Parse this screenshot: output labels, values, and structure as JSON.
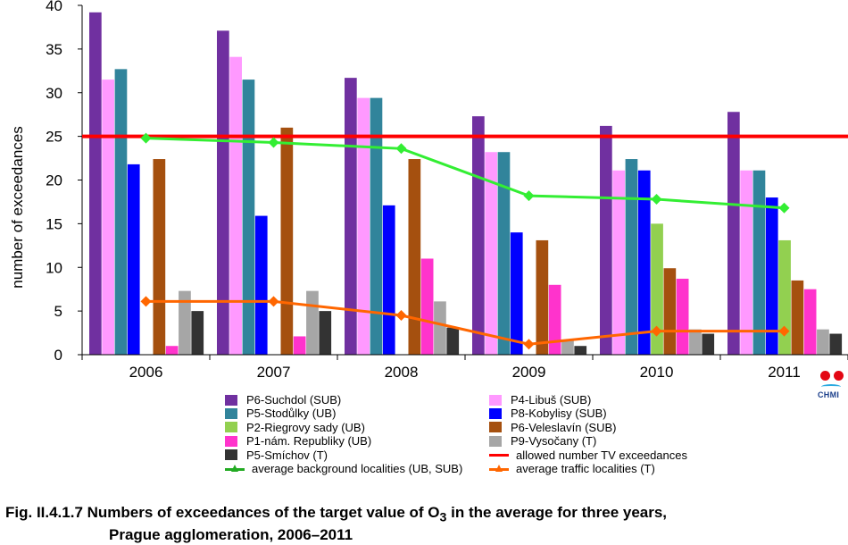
{
  "chart_data": {
    "type": "bar",
    "title": "",
    "xlabel": "",
    "ylabel": "number of exceedances",
    "ylim": [
      0,
      40
    ],
    "yticks": [
      0,
      5,
      10,
      15,
      20,
      25,
      30,
      35,
      40
    ],
    "grid": false,
    "legend_position": "bottom",
    "categories": [
      "2006",
      "2007",
      "2008",
      "2009",
      "2010",
      "2011"
    ],
    "series": [
      {
        "name": "P6-Suchdol (SUB)",
        "color": "#7030a0",
        "values": [
          39.2,
          37.1,
          31.7,
          27.3,
          26.2,
          27.8
        ]
      },
      {
        "name": "P4-Libuš (SUB)",
        "color": "#ff99ff",
        "values": [
          31.5,
          34.1,
          29.4,
          23.2,
          21.1,
          21.1
        ]
      },
      {
        "name": "P5-Stodůlky (UB)",
        "color": "#31849b",
        "values": [
          32.7,
          31.5,
          29.4,
          23.2,
          22.4,
          21.1
        ]
      },
      {
        "name": "P8-Kobylisy (SUB)",
        "color": "#0000ff",
        "values": [
          21.8,
          15.9,
          17.1,
          14.0,
          21.1,
          18.0
        ]
      },
      {
        "name": "P2-Riegrovy sady (UB)",
        "color": "#92d050",
        "values": [
          null,
          null,
          null,
          null,
          15.0,
          13.1
        ]
      },
      {
        "name": "P6-Veleslavín (SUB)",
        "color": "#a5500f",
        "values": [
          22.4,
          26.0,
          22.4,
          13.1,
          9.9,
          8.5
        ]
      },
      {
        "name": "P1-nám. Republiky (UB)",
        "color": "#ff33cc",
        "values": [
          1.0,
          2.1,
          11.0,
          8.0,
          8.7,
          7.5
        ]
      },
      {
        "name": "P9-Vysočany (T)",
        "color": "#a6a6a6",
        "values": [
          7.3,
          7.3,
          6.1,
          1.6,
          2.9,
          2.9
        ]
      },
      {
        "name": "P5-Smíchov (T)",
        "color": "#333333",
        "values": [
          5.0,
          5.0,
          3.1,
          1.0,
          2.4,
          2.4
        ]
      }
    ],
    "threshold": {
      "name": "allowed number TV exceedances",
      "value": 25,
      "color": "#ff0000"
    },
    "lines": [
      {
        "name": "average background localities (UB, SUB)",
        "color": "#33ee33",
        "values": [
          24.8,
          24.3,
          23.6,
          18.2,
          17.8,
          16.8
        ]
      },
      {
        "name": "average traffic localities (T)",
        "color": "#ff6600",
        "values": [
          6.1,
          6.1,
          4.5,
          1.2,
          2.7,
          2.7
        ]
      }
    ]
  },
  "legend": {
    "items": [
      {
        "label": "P6-Suchdol (SUB)",
        "color": "#7030a0",
        "kind": "bar"
      },
      {
        "label": "P4-Libuš (SUB)",
        "color": "#ff99ff",
        "kind": "bar"
      },
      {
        "label": "P5-Stodůlky (UB)",
        "color": "#31849b",
        "kind": "bar"
      },
      {
        "label": "P8-Kobylisy (SUB)",
        "color": "#0000ff",
        "kind": "bar"
      },
      {
        "label": "P2-Riegrovy sady (UB)",
        "color": "#92d050",
        "kind": "bar"
      },
      {
        "label": "P6-Veleslavín (SUB)",
        "color": "#a5500f",
        "kind": "bar"
      },
      {
        "label": "P1-nám. Republiky (UB)",
        "color": "#ff33cc",
        "kind": "bar"
      },
      {
        "label": "P9-Vysočany (T)",
        "color": "#a6a6a6",
        "kind": "bar"
      },
      {
        "label": "P5-Smíchov (T)",
        "color": "#333333",
        "kind": "bar"
      },
      {
        "label": "allowed number TV exceedances",
        "color": "#ff0000",
        "kind": "line"
      },
      {
        "label": "average background localities (UB, SUB)",
        "color": "#22aa22",
        "kind": "marker-line"
      },
      {
        "label": "average traffic localities (T)",
        "color": "#ff6600",
        "kind": "marker-line"
      }
    ]
  },
  "logo": {
    "text": "CHMI"
  },
  "caption": {
    "line1_prefix": "Fig. II.4.1.7  Numbers of exceedances of the target value of O",
    "line1_sub": "3",
    "line1_suffix": " in the average for three years,",
    "line2": "Prague agglomeration, 2006–2011"
  }
}
